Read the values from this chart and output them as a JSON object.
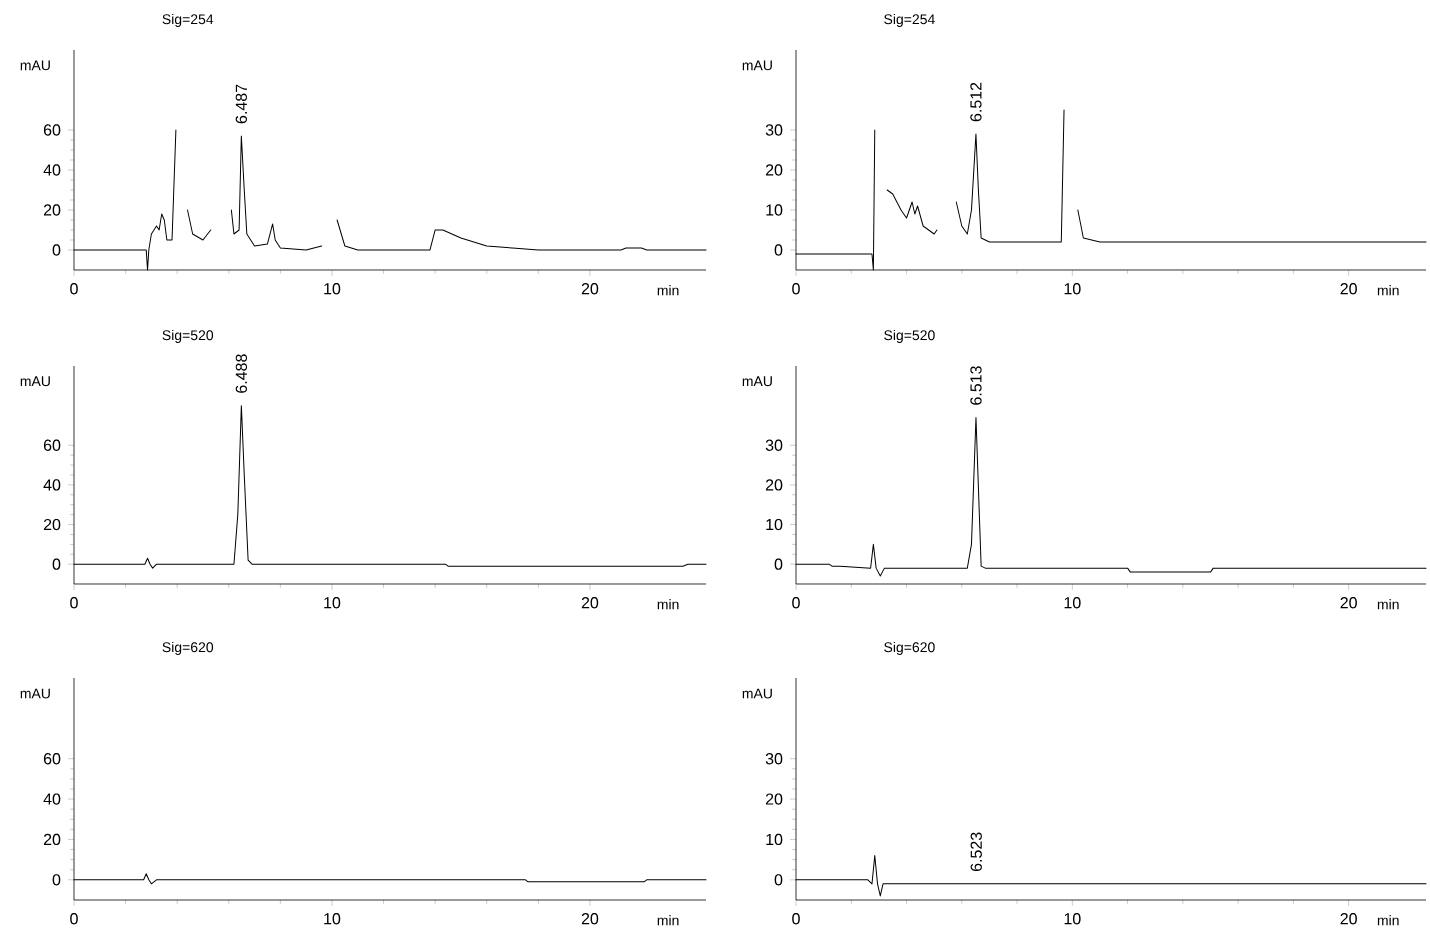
{
  "chart_data": [
    {
      "type": "line",
      "title": "Sig=254",
      "xlabel": "min",
      "ylabel": "mAU",
      "color": "#000000",
      "xlim": [
        0,
        24.5
      ],
      "ylim": [
        -10,
        100
      ],
      "xticks": [
        0,
        10,
        20
      ],
      "yticks": [
        0,
        20,
        40,
        60
      ],
      "x": [
        0,
        2.8,
        2.85,
        2.9,
        3.0,
        3.2,
        3.3,
        3.4,
        3.5,
        3.6,
        3.8,
        3.95,
        4.05,
        4.3,
        4.4,
        4.6,
        5.0,
        5.3,
        5.45,
        5.9,
        6.1,
        6.2,
        6.4,
        6.487,
        6.6,
        6.7,
        7.0,
        7.5,
        7.7,
        7.8,
        8.0,
        9.0,
        9.6,
        9.75,
        10.0,
        10.2,
        10.5,
        11.0,
        13.8,
        14.0,
        14.3,
        15.0,
        16.0,
        17.0,
        18.0,
        21.2,
        21.4,
        22.0,
        22.2,
        24.5
      ],
      "values": [
        0,
        0,
        -10,
        0,
        8,
        12,
        10,
        18,
        15,
        5,
        5,
        60,
        null,
        null,
        20,
        8,
        5,
        10,
        null,
        null,
        20,
        8,
        10,
        57,
        30,
        8,
        2,
        3,
        13,
        5,
        1,
        0,
        2,
        null,
        null,
        15,
        2,
        0,
        0,
        10,
        10,
        6,
        2,
        1,
        0,
        0,
        1,
        1,
        0,
        0
      ],
      "annotations": [
        {
          "text": "6.487",
          "x": 6.487,
          "y": 57
        }
      ]
    },
    {
      "type": "line",
      "title": "Sig=254",
      "xlabel": "min",
      "ylabel": "mAU",
      "color": "#000000",
      "xlim": [
        0,
        22.8
      ],
      "ylim": [
        -5,
        50
      ],
      "xticks": [
        0,
        10,
        20
      ],
      "yticks": [
        0,
        10,
        20,
        30
      ],
      "x": [
        0,
        2.75,
        2.8,
        2.85,
        2.9,
        3.2,
        3.3,
        3.5,
        3.8,
        4.0,
        4.2,
        4.3,
        4.4,
        4.6,
        4.8,
        5.0,
        5.1,
        5.2,
        5.65,
        5.8,
        6.0,
        6.2,
        6.35,
        6.512,
        6.6,
        6.7,
        7.0,
        9.6,
        9.7,
        9.8,
        10.1,
        10.2,
        10.4,
        11.0,
        22.8
      ],
      "values": [
        -1,
        -1,
        -5,
        30,
        null,
        null,
        15,
        14,
        10,
        8,
        12,
        9,
        11,
        6,
        5,
        4,
        5,
        null,
        null,
        12,
        6,
        4,
        10,
        29,
        15,
        3,
        2,
        2,
        35,
        null,
        null,
        10,
        3,
        2,
        2
      ],
      "annotations": [
        {
          "text": "6.512",
          "x": 6.512,
          "y": 29
        }
      ]
    },
    {
      "type": "line",
      "title": "Sig=520",
      "xlabel": "min",
      "ylabel": "mAU",
      "color": "#000000",
      "xlim": [
        0,
        24.5
      ],
      "ylim": [
        -10,
        100
      ],
      "xticks": [
        0,
        10,
        20
      ],
      "yticks": [
        0,
        20,
        40,
        60
      ],
      "x": [
        0,
        2.75,
        2.85,
        2.95,
        3.05,
        3.2,
        6.2,
        6.35,
        6.488,
        6.6,
        6.75,
        6.9,
        14.4,
        14.5,
        23.6,
        23.8,
        24.5
      ],
      "values": [
        0,
        0,
        3,
        0,
        -2,
        0,
        0,
        25,
        80,
        45,
        2,
        0,
        0,
        -1,
        -1,
        0,
        0
      ],
      "annotations": [
        {
          "text": "6.488",
          "x": 6.488,
          "y": 80
        }
      ]
    },
    {
      "type": "line",
      "title": "Sig=520",
      "xlabel": "min",
      "ylabel": "mAU",
      "color": "#000000",
      "xlim": [
        0,
        22.8
      ],
      "ylim": [
        -5,
        50
      ],
      "xticks": [
        0,
        10,
        20
      ],
      "yticks": [
        0,
        10,
        20,
        30
      ],
      "x": [
        0,
        1.2,
        1.3,
        1.6,
        2.7,
        2.8,
        2.9,
        3.05,
        3.2,
        6.2,
        6.35,
        6.513,
        6.7,
        6.85,
        12.0,
        12.1,
        15.0,
        15.1,
        22.8
      ],
      "values": [
        0,
        0,
        -0.5,
        -0.5,
        -1,
        5,
        -1,
        -3,
        -1,
        -1,
        5,
        37,
        -0.5,
        -1,
        -1,
        -2,
        -2,
        -1,
        -1
      ],
      "annotations": [
        {
          "text": "6.513",
          "x": 6.513,
          "y": 37
        }
      ]
    },
    {
      "type": "line",
      "title": "Sig=620",
      "xlabel": "min",
      "ylabel": "mAU",
      "color": "#000000",
      "xlim": [
        0,
        24.5
      ],
      "ylim": [
        -10,
        100
      ],
      "xticks": [
        0,
        10,
        20
      ],
      "yticks": [
        0,
        20,
        40,
        60
      ],
      "x": [
        0,
        2.7,
        2.8,
        2.9,
        3.0,
        3.2,
        17.5,
        17.6,
        22.1,
        22.2,
        24.5
      ],
      "values": [
        0,
        0,
        3,
        0,
        -2,
        0,
        0,
        -1,
        -1,
        0,
        0
      ]
    },
    {
      "type": "line",
      "title": "Sig=620",
      "xlabel": "min",
      "ylabel": "mAU",
      "color": "#000000",
      "xlim": [
        0,
        22.8
      ],
      "ylim": [
        -5,
        50
      ],
      "xticks": [
        0,
        10,
        20
      ],
      "yticks": [
        0,
        10,
        20,
        30
      ],
      "x": [
        0,
        2.6,
        2.75,
        2.85,
        2.95,
        3.05,
        3.15,
        3.3,
        22.8
      ],
      "values": [
        0,
        0,
        -1,
        6,
        -1,
        -4,
        -1,
        -1,
        -1
      ],
      "annotations": [
        {
          "text": "6.523",
          "x": 6.523,
          "y": -1
        }
      ]
    }
  ]
}
